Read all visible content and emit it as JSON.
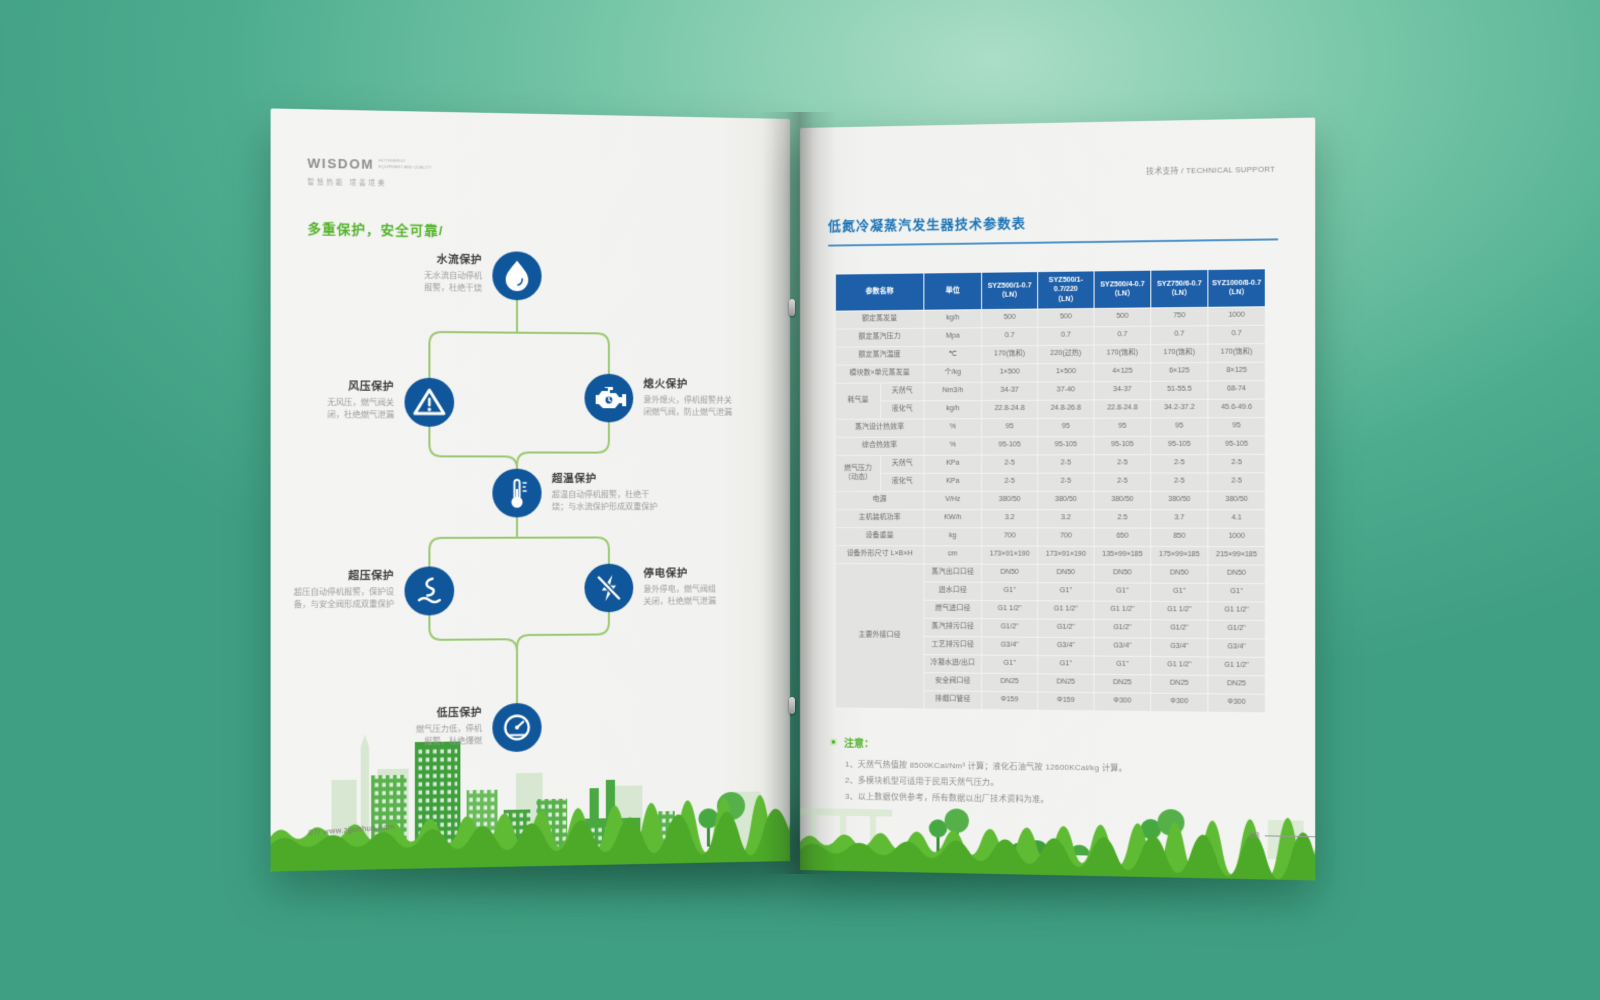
{
  "colors": {
    "backdrop": "#4dac8e",
    "page": "#f3f3f1",
    "accent_green": "#54b42c",
    "node_blue": "#0f569b",
    "line_green": "#9cc873",
    "title_blue": "#1b74b8",
    "table_header_blue": "#1e5fa9",
    "cell_gray": "#e3e3e1",
    "grass_green": "#4caa28"
  },
  "left_page": {
    "logo": {
      "brand": "WISDOM",
      "sub_en": "HOT ENERGY\nEQUIPMENT AND QUALITY",
      "sub_cn": "智慧热能 境善境美"
    },
    "title": "多重保护，安全可靠/",
    "nodes": [
      {
        "title": "水流保护",
        "desc": "无水流自动停机\n报警，杜绝干烧",
        "icon": "water-drop"
      },
      {
        "title": "风压保护",
        "desc": "无风压，燃气阀关\n闭，杜绝燃气泄漏",
        "icon": "warning-triangle"
      },
      {
        "title": "熄火保护",
        "desc": "意外熄火，停机报警并关\n闭燃气阀，防止燃气泄漏",
        "icon": "engine"
      },
      {
        "title": "超温保护",
        "desc": "超温自动停机报警，杜绝干\n烧；与水流保护形成双重保护",
        "icon": "thermometer"
      },
      {
        "title": "超压保护",
        "desc": "超压自动停机报警，保护设\n备，与安全阀形成双重保护",
        "icon": "pressure-steam"
      },
      {
        "title": "停电保护",
        "desc": "意外停电，燃气阀组\n关闭，杜绝燃气泄漏",
        "icon": "power-off"
      },
      {
        "title": "低压保护",
        "desc": "燃气压力低，停机\n报警，杜绝爆燃",
        "icon": "gauge"
      }
    ],
    "footer": "07/ www.zjjunhua.com"
  },
  "right_page": {
    "header": "技术支持 / TECHNICAL SUPPORT",
    "table_title": "低氮冷凝蒸汽发生器技术参数表",
    "table": {
      "header_cells": [
        {
          "t": "参数名称",
          "cs": 2
        },
        {
          "t": "单位"
        },
        {
          "t": "SYZ500/1-0.7\n（LN）"
        },
        {
          "t": "SYZ500/1-0.7/220\n（LN）"
        },
        {
          "t": "SYZ500/4-0.7\n（LN）"
        },
        {
          "t": "SYZ750/6-0.7\n（LN）"
        },
        {
          "t": "SYZ1000/8-0.7\n（LN）"
        }
      ],
      "rows": [
        {
          "cells": [
            {
              "t": "额定蒸发量",
              "cs": 2
            },
            {
              "t": "kg/h"
            },
            {
              "t": "500"
            },
            {
              "t": "500"
            },
            {
              "t": "500"
            },
            {
              "t": "750"
            },
            {
              "t": "1000"
            }
          ]
        },
        {
          "cells": [
            {
              "t": "额定蒸汽压力",
              "cs": 2
            },
            {
              "t": "Mpa"
            },
            {
              "t": "0.7"
            },
            {
              "t": "0.7"
            },
            {
              "t": "0.7"
            },
            {
              "t": "0.7"
            },
            {
              "t": "0.7"
            }
          ]
        },
        {
          "cells": [
            {
              "t": "额定蒸汽温度",
              "cs": 2
            },
            {
              "t": "℃"
            },
            {
              "t": "170(饱和)"
            },
            {
              "t": "220(过热)"
            },
            {
              "t": "170(饱和)"
            },
            {
              "t": "170(饱和)"
            },
            {
              "t": "170(饱和)"
            }
          ]
        },
        {
          "cells": [
            {
              "t": "模块数×单元蒸发量",
              "cs": 2
            },
            {
              "t": "个/kg"
            },
            {
              "t": "1×500"
            },
            {
              "t": "1×500"
            },
            {
              "t": "4×125"
            },
            {
              "t": "6×125"
            },
            {
              "t": "8×125"
            }
          ]
        },
        {
          "cells": [
            {
              "t": "耗气量",
              "rs": 2
            },
            {
              "t": "天然气"
            },
            {
              "t": "Nm3/h"
            },
            {
              "t": "34-37"
            },
            {
              "t": "37-40"
            },
            {
              "t": "34-37"
            },
            {
              "t": "51-55.5"
            },
            {
              "t": "68-74"
            }
          ]
        },
        {
          "cells": [
            {
              "t": "液化气"
            },
            {
              "t": "kg/h"
            },
            {
              "t": "22.8-24.8"
            },
            {
              "t": "24.8-26.8"
            },
            {
              "t": "22.8-24.8"
            },
            {
              "t": "34.2-37.2"
            },
            {
              "t": "45.6-49.6"
            }
          ]
        },
        {
          "cells": [
            {
              "t": "蒸汽设计热效率",
              "cs": 2
            },
            {
              "t": "%"
            },
            {
              "t": "95"
            },
            {
              "t": "95"
            },
            {
              "t": "95"
            },
            {
              "t": "95"
            },
            {
              "t": "95"
            }
          ]
        },
        {
          "cells": [
            {
              "t": "综合热效率",
              "cs": 2
            },
            {
              "t": "%"
            },
            {
              "t": "95-105"
            },
            {
              "t": "95-105"
            },
            {
              "t": "95-105"
            },
            {
              "t": "95-105"
            },
            {
              "t": "95-105"
            }
          ]
        },
        {
          "cells": [
            {
              "t": "燃气压力\n（动态）",
              "rs": 2
            },
            {
              "t": "天然气"
            },
            {
              "t": "KPa"
            },
            {
              "t": "2-5"
            },
            {
              "t": "2-5"
            },
            {
              "t": "2-5"
            },
            {
              "t": "2-5"
            },
            {
              "t": "2-5"
            }
          ]
        },
        {
          "cells": [
            {
              "t": "液化气"
            },
            {
              "t": "KPa"
            },
            {
              "t": "2-5"
            },
            {
              "t": "2-5"
            },
            {
              "t": "2-5"
            },
            {
              "t": "2-5"
            },
            {
              "t": "2-5"
            }
          ]
        },
        {
          "cells": [
            {
              "t": "电源",
              "cs": 2
            },
            {
              "t": "V/Hz"
            },
            {
              "t": "380/50"
            },
            {
              "t": "380/50"
            },
            {
              "t": "380/50"
            },
            {
              "t": "380/50"
            },
            {
              "t": "380/50"
            }
          ]
        },
        {
          "cells": [
            {
              "t": "主机装机功率",
              "cs": 2
            },
            {
              "t": "KW/h"
            },
            {
              "t": "3.2"
            },
            {
              "t": "3.2"
            },
            {
              "t": "2.5"
            },
            {
              "t": "3.7"
            },
            {
              "t": "4.1"
            }
          ]
        },
        {
          "cells": [
            {
              "t": "设备重量",
              "cs": 2
            },
            {
              "t": "kg"
            },
            {
              "t": "700"
            },
            {
              "t": "700"
            },
            {
              "t": "650"
            },
            {
              "t": "850"
            },
            {
              "t": "1000"
            }
          ]
        },
        {
          "cells": [
            {
              "t": "设备外形尺寸 L×B×H",
              "cs": 2
            },
            {
              "t": "cm"
            },
            {
              "t": "173×91×190"
            },
            {
              "t": "173×91×190"
            },
            {
              "t": "135×99×185"
            },
            {
              "t": "175×99×185"
            },
            {
              "t": "215×99×185"
            }
          ]
        },
        {
          "cells": [
            {
              "t": "主要外接口径",
              "cs": 2,
              "rs": 8
            },
            {
              "t": "蒸汽出口口径"
            },
            {
              "t": "DN50"
            },
            {
              "t": "DN50"
            },
            {
              "t": "DN50"
            },
            {
              "t": "DN50"
            },
            {
              "t": "DN50"
            }
          ]
        },
        {
          "cells": [
            {
              "t": "进水口径"
            },
            {
              "t": "G1\""
            },
            {
              "t": "G1\""
            },
            {
              "t": "G1\""
            },
            {
              "t": "G1\""
            },
            {
              "t": "G1\""
            }
          ]
        },
        {
          "cells": [
            {
              "t": "燃气进口径"
            },
            {
              "t": "G1 1/2\""
            },
            {
              "t": "G1 1/2\""
            },
            {
              "t": "G1 1/2\""
            },
            {
              "t": "G1 1/2\""
            },
            {
              "t": "G1 1/2\""
            }
          ]
        },
        {
          "cells": [
            {
              "t": "蒸汽排污口径"
            },
            {
              "t": "G1/2\""
            },
            {
              "t": "G1/2\""
            },
            {
              "t": "G1/2\""
            },
            {
              "t": "G1/2\""
            },
            {
              "t": "G1/2\""
            }
          ]
        },
        {
          "cells": [
            {
              "t": "工艺排污口径"
            },
            {
              "t": "G3/4\""
            },
            {
              "t": "G3/4\""
            },
            {
              "t": "G3/4\""
            },
            {
              "t": "G3/4\""
            },
            {
              "t": "G3/4\""
            }
          ]
        },
        {
          "cells": [
            {
              "t": "冷凝水进/出口"
            },
            {
              "t": "G1\""
            },
            {
              "t": "G1\""
            },
            {
              "t": "G1\""
            },
            {
              "t": "G1 1/2\""
            },
            {
              "t": "G1 1/2\""
            }
          ]
        },
        {
          "cells": [
            {
              "t": "安全阀口径"
            },
            {
              "t": "DN25"
            },
            {
              "t": "DN25"
            },
            {
              "t": "DN25"
            },
            {
              "t": "DN25"
            },
            {
              "t": "DN25"
            }
          ]
        },
        {
          "cells": [
            {
              "t": "排烟口管径"
            },
            {
              "t": "Φ159"
            },
            {
              "t": "Φ159"
            },
            {
              "t": "Φ300"
            },
            {
              "t": "Φ300"
            },
            {
              "t": "Φ300"
            }
          ]
        }
      ]
    },
    "notes": {
      "label": "注意：",
      "items": [
        "1、天然气热值按 8500KCal/Nm³ 计算；液化石油气按 12600KCal/kg 计算。",
        "2、多模块机型可适用于民用天然气压力。",
        "3、以上数据仅供参考，所有数据以出厂技术资料为准。"
      ]
    },
    "page_number": "08"
  }
}
